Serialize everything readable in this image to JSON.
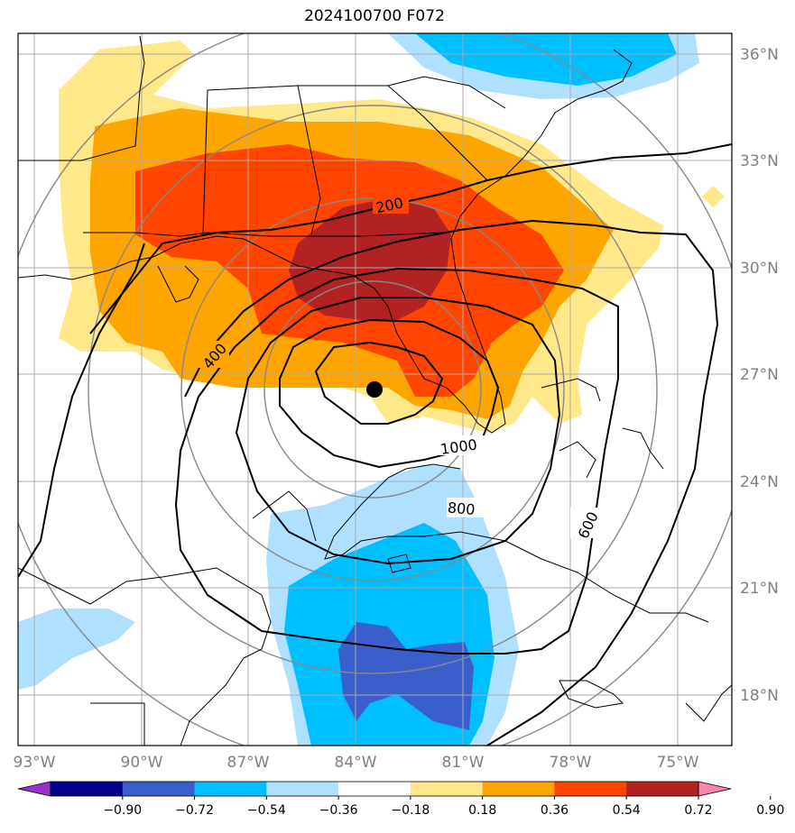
{
  "title": "2024100700 F072",
  "lat_labels": [
    "36°N",
    "33°N",
    "30°N",
    "27°N",
    "24°N",
    "21°N",
    "18°N"
  ],
  "lon_labels": [
    "93°W",
    "90°W",
    "87°W",
    "84°W",
    "81°W",
    "78°W",
    "75°W"
  ],
  "contour_labels": [
    "200",
    "400",
    "1000",
    "800",
    "600"
  ],
  "colorbar": {
    "labels": [
      "−0.90",
      "−0.72",
      "−0.54",
      "−0.36",
      "−0.18",
      "0.18",
      "0.36",
      "0.54",
      "0.72",
      "0.90"
    ],
    "colors": [
      "#9932cc",
      "#00008b",
      "#3a5fcd",
      "#00bfff",
      "#b0e0ff",
      "#ffffff",
      "#ffe88a",
      "#ffa500",
      "#ff4500",
      "#b22222",
      "#ff82ab"
    ]
  },
  "storm_center": {
    "lat": 26.4,
    "lon": -83.5
  }
}
